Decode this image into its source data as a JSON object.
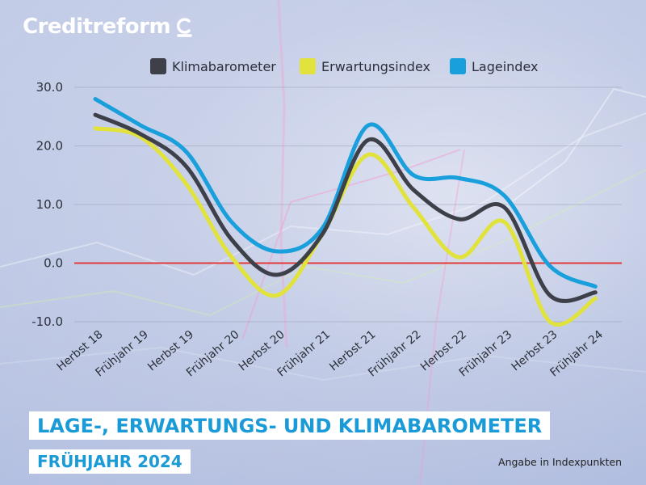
{
  "brand": {
    "name": "Creditreform",
    "logo_icon": "creditreform-c-icon"
  },
  "colors": {
    "Klimabarometer": "#3d3f49",
    "Erwartungsindex": "#e1e33c",
    "Lageindex": "#199fdb",
    "zero_line": "#e03a3a",
    "title_text": "#1a9ad6"
  },
  "title": "LAGE-, ERWARTUNGS- UND KLIMABAROMETER",
  "subtitle": "FRÜHJAHR 2024",
  "note": "Angabe in Indexpunkten",
  "chart_data": {
    "type": "line",
    "categories": [
      "Herbst 18",
      "Frühjahr 19",
      "Herbst 19",
      "Frühjahr 20",
      "Herbst 20",
      "Frühjahr 21",
      "Herbst 21",
      "Frühjahr 22",
      "Herbst 22",
      "Frühjahr 23",
      "Herbst 23",
      "Frühjahr 24"
    ],
    "series": [
      {
        "name": "Klimabarometer",
        "values": [
          25.3,
          22.0,
          16.5,
          4.0,
          -2.0,
          5.0,
          21.0,
          12.5,
          7.5,
          9.5,
          -5.5,
          -5.0
        ]
      },
      {
        "name": "Erwartungsindex",
        "values": [
          23.0,
          21.5,
          13.5,
          1.0,
          -5.5,
          5.0,
          18.5,
          9.5,
          1.0,
          7.0,
          -10.0,
          -6.0
        ]
      },
      {
        "name": "Lageindex",
        "values": [
          28.0,
          23.5,
          19.0,
          7.0,
          2.0,
          6.0,
          23.5,
          15.0,
          14.5,
          11.5,
          -0.5,
          -4.0
        ]
      }
    ],
    "y_ticks": [
      "30.0",
      "20.0",
      "10.0",
      "0.0",
      "-10.0"
    ],
    "ylim": [
      -10,
      30
    ],
    "legend_position": "top",
    "grid": true,
    "reference_line_at": 0
  }
}
